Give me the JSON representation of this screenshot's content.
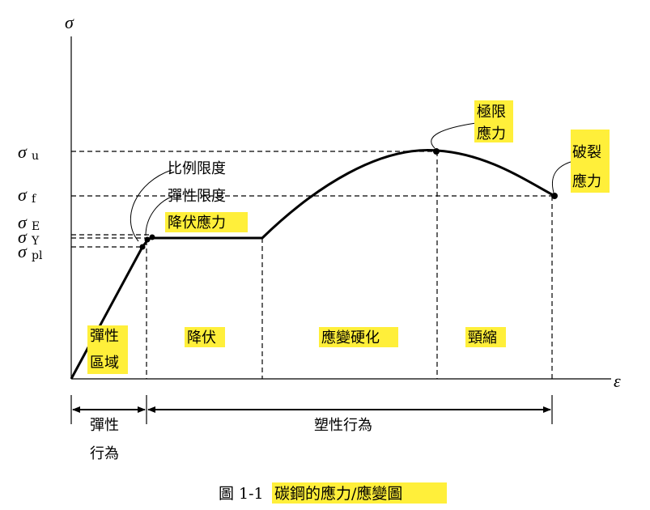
{
  "axes": {
    "y_label": "σ",
    "x_label": "ε"
  },
  "stress_levels": {
    "u": {
      "symbol": "σ",
      "sub": "u"
    },
    "f": {
      "symbol": "σ",
      "sub": "f"
    },
    "E": {
      "symbol": "σ",
      "sub": "E"
    },
    "Y": {
      "symbol": "σ",
      "sub": "Y"
    },
    "pl": {
      "symbol": "σ",
      "sub": "pl"
    }
  },
  "annotations": {
    "proportional_limit": "比例限度",
    "elastic_limit": "彈性限度",
    "yield_stress": "降伏應力",
    "ultimate_line1": "極限",
    "ultimate_line2": "應力",
    "fracture_line1": "破裂",
    "fracture_line2": "應力"
  },
  "regions": {
    "elastic_line1": "彈性",
    "elastic_line2": "區域",
    "yield": "降伏",
    "strain_hardening": "應變硬化",
    "necking": "頸縮"
  },
  "behaviors": {
    "elastic_line1": "彈性",
    "elastic_line2": "行為",
    "plastic": "塑性行為"
  },
  "caption": {
    "prefix": "圖 1-1",
    "title": "碳鋼的應力/應變圖"
  },
  "colors": {
    "highlight": "#ffef3a",
    "line": "#000000"
  }
}
